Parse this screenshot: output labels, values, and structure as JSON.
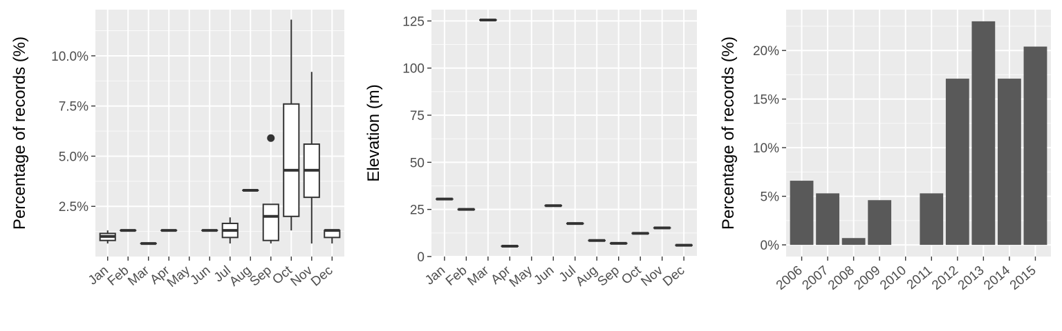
{
  "chart_data": [
    {
      "type": "boxplot",
      "title": "",
      "xlabel": "",
      "ylabel": "Percentage of records (%)",
      "ylim": [
        0.0,
        12.3
      ],
      "y_ticks": [
        2.5,
        5.0,
        7.5,
        10.0
      ],
      "y_tick_labels": [
        "2.5%",
        "5.0%",
        "7.5%",
        "10.0%"
      ],
      "categories": [
        "Jan",
        "Feb",
        "Mar",
        "Apr",
        "May",
        "Jun",
        "Jul",
        "Aug",
        "Sep",
        "Oct",
        "Nov",
        "Dec"
      ],
      "boxes": [
        {
          "category": "Jan",
          "min": 0.65,
          "q1": 0.8,
          "median": 1.0,
          "q3": 1.15,
          "max": 1.3,
          "outliers": []
        },
        {
          "category": "Feb",
          "min": 1.3,
          "q1": 1.3,
          "median": 1.3,
          "q3": 1.3,
          "max": 1.3,
          "outliers": []
        },
        {
          "category": "Mar",
          "min": 0.65,
          "q1": 0.65,
          "median": 0.65,
          "q3": 0.65,
          "max": 0.65,
          "outliers": []
        },
        {
          "category": "Apr",
          "min": 1.3,
          "q1": 1.3,
          "median": 1.3,
          "q3": 1.3,
          "max": 1.3,
          "outliers": []
        },
        {
          "category": "May",
          "min": null,
          "q1": null,
          "median": null,
          "q3": null,
          "max": null,
          "outliers": []
        },
        {
          "category": "Jun",
          "min": 1.3,
          "q1": 1.3,
          "median": 1.3,
          "q3": 1.3,
          "max": 1.3,
          "outliers": []
        },
        {
          "category": "Jul",
          "min": 0.65,
          "q1": 0.95,
          "median": 1.3,
          "q3": 1.65,
          "max": 1.95,
          "outliers": []
        },
        {
          "category": "Aug",
          "min": 3.3,
          "q1": 3.3,
          "median": 3.3,
          "q3": 3.3,
          "max": 3.3,
          "outliers": []
        },
        {
          "category": "Sep",
          "min": 0.65,
          "q1": 0.8,
          "median": 2.0,
          "q3": 2.6,
          "max": 2.6,
          "outliers": [
            5.9
          ]
        },
        {
          "category": "Oct",
          "min": 1.3,
          "q1": 2.0,
          "median": 4.3,
          "q3": 7.6,
          "max": 11.8,
          "outliers": []
        },
        {
          "category": "Nov",
          "min": 0.65,
          "q1": 2.95,
          "median": 4.3,
          "q3": 5.6,
          "max": 9.2,
          "outliers": []
        },
        {
          "category": "Dec",
          "min": 0.65,
          "q1": 0.95,
          "median": 1.3,
          "q3": 1.3,
          "max": 1.3,
          "outliers": []
        }
      ]
    },
    {
      "type": "boxplot",
      "title": "",
      "xlabel": "",
      "ylabel": "Elevation (m)",
      "ylim": [
        0,
        131
      ],
      "y_ticks": [
        0,
        25,
        50,
        75,
        100,
        125
      ],
      "y_tick_labels": [
        "0",
        "25",
        "50",
        "75",
        "100",
        "125"
      ],
      "categories": [
        "Jan",
        "Feb",
        "Mar",
        "Apr",
        "May",
        "Jun",
        "Jul",
        "Aug",
        "Sep",
        "Oct",
        "Nov",
        "Dec"
      ],
      "boxes": [
        {
          "category": "Jan",
          "min": 30.5,
          "q1": 30.5,
          "median": 30.5,
          "q3": 30.5,
          "max": 30.5,
          "outliers": []
        },
        {
          "category": "Feb",
          "min": 25,
          "q1": 25,
          "median": 25,
          "q3": 25,
          "max": 25,
          "outliers": []
        },
        {
          "category": "Mar",
          "min": 125.5,
          "q1": 125.5,
          "median": 125.5,
          "q3": 125.5,
          "max": 125.5,
          "outliers": []
        },
        {
          "category": "Apr",
          "min": 5.5,
          "q1": 5.5,
          "median": 5.5,
          "q3": 5.5,
          "max": 5.5,
          "outliers": []
        },
        {
          "category": "May",
          "min": null,
          "q1": null,
          "median": null,
          "q3": null,
          "max": null,
          "outliers": []
        },
        {
          "category": "Jun",
          "min": 27,
          "q1": 27,
          "median": 27,
          "q3": 27,
          "max": 27,
          "outliers": []
        },
        {
          "category": "Jul",
          "min": 17.5,
          "q1": 17.5,
          "median": 17.5,
          "q3": 17.5,
          "max": 17.5,
          "outliers": []
        },
        {
          "category": "Aug",
          "min": 8.5,
          "q1": 8.5,
          "median": 8.5,
          "q3": 8.5,
          "max": 8.5,
          "outliers": []
        },
        {
          "category": "Sep",
          "min": 7,
          "q1": 7,
          "median": 7,
          "q3": 7,
          "max": 7,
          "outliers": []
        },
        {
          "category": "Oct",
          "min": 12.3,
          "q1": 12.3,
          "median": 12.3,
          "q3": 12.3,
          "max": 12.3,
          "outliers": []
        },
        {
          "category": "Nov",
          "min": 15.2,
          "q1": 15.2,
          "median": 15.2,
          "q3": 15.2,
          "max": 15.2,
          "outliers": []
        },
        {
          "category": "Dec",
          "min": 6,
          "q1": 6,
          "median": 6,
          "q3": 6,
          "max": 6,
          "outliers": []
        }
      ]
    },
    {
      "type": "bar",
      "title": "",
      "xlabel": "",
      "ylabel": "Percentage of records (%)",
      "ylim": [
        -1.2,
        24.2
      ],
      "y_ticks": [
        0,
        5,
        10,
        15,
        20
      ],
      "y_tick_labels": [
        "0%",
        "5%",
        "10%",
        "15%",
        "20%"
      ],
      "categories": [
        "2006",
        "2007",
        "2008",
        "2009",
        "2010",
        "2011",
        "2012",
        "2013",
        "2014",
        "2015"
      ],
      "values": [
        6.6,
        5.3,
        0.7,
        4.6,
        0,
        5.3,
        17.1,
        23.0,
        17.1,
        20.4
      ]
    }
  ]
}
